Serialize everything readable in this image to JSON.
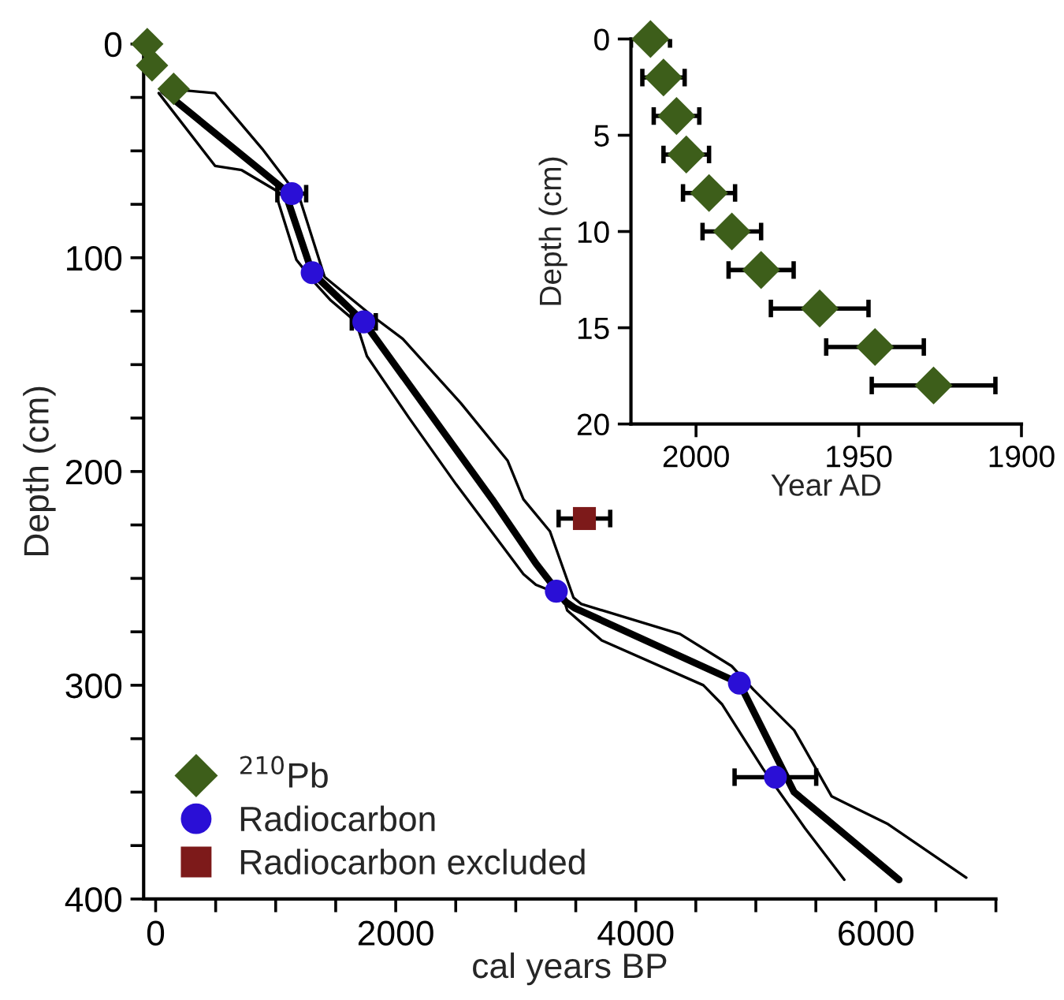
{
  "chart_data": [
    {
      "type": "line",
      "xlabel": "cal years BP",
      "ylabel": "Depth (cm)",
      "xlim": [
        -100,
        7000
      ],
      "ylim": [
        400,
        0
      ],
      "xticks": [
        0,
        {
          "value": 500,
          "label": null
        },
        {
          "value": 1000,
          "label": null
        },
        {
          "value": 1500,
          "label": null
        },
        2000,
        {
          "value": 2500,
          "label": null
        },
        {
          "value": 3000,
          "label": null
        },
        {
          "value": 3500,
          "label": null
        },
        4000,
        {
          "value": 4500,
          "label": null
        },
        {
          "value": 5000,
          "label": null
        },
        {
          "value": 5500,
          "label": null
        },
        6000,
        {
          "value": 6500,
          "label": null
        },
        {
          "value": 7000,
          "label": null
        }
      ],
      "yticks": [
        0,
        {
          "value": 25,
          "label": null
        },
        {
          "value": 50,
          "label": null
        },
        {
          "value": 75,
          "label": null
        },
        100,
        {
          "value": 125,
          "label": null
        },
        {
          "value": 150,
          "label": null
        },
        {
          "value": 175,
          "label": null
        },
        200,
        {
          "value": 225,
          "label": null
        },
        {
          "value": 250,
          "label": null
        },
        {
          "value": 275,
          "label": null
        },
        300,
        {
          "value": 325,
          "label": null
        },
        {
          "value": 350,
          "label": null
        },
        {
          "value": 375,
          "label": null
        },
        400
      ],
      "grid": false,
      "legend": "bottom left",
      "series": [
        {
          "color": "#000000",
          "x": [
            26,
            495,
            717,
            1017,
            1017,
            1173,
            1330,
            1460,
            1669,
            1760,
            2112,
            2503,
            3064,
            3168,
            3390,
            3429,
            3716,
            4563,
            4720,
            5059,
            5411,
            5737
          ],
          "values": [
            23,
            57,
            59,
            69,
            73,
            101,
            112,
            120,
            130,
            146,
            175,
            206,
            248,
            253,
            258,
            265,
            279,
            300,
            309,
            339,
            367,
            391
          ]
        },
        {
          "color": "#000000",
          "x": [
            65,
            1070,
            1304,
            1734,
            2803,
            3168,
            3416,
            3494,
            4863,
            5319,
            6193
          ],
          "values": [
            22,
            68,
            107,
            130,
            213,
            243,
            261,
            264,
            299,
            350,
            391
          ]
        },
        {
          "color": "#000000",
          "x": [
            104,
            495,
            887,
            1199,
            1408,
            1799,
            2060,
            2542,
            2933,
            3064,
            3285,
            3481,
            3546,
            4368,
            4798,
            4980,
            5319,
            5632,
            6102,
            6753
          ],
          "values": [
            21,
            23,
            49,
            72,
            109,
            127,
            138,
            168,
            195,
            213,
            228,
            259,
            262,
            276,
            291,
            302,
            321,
            352,
            365,
            390
          ]
        },
        {
          "type": "scatter",
          "name": "$^{210}$Pb",
          "marker": "diamond",
          "color": "#3d5e1a",
          "x": [
            -70,
            -30,
            150
          ],
          "values": [
            0,
            10,
            21
          ]
        },
        {
          "type": "scatter",
          "name": "Radiocarbon",
          "marker": "circle",
          "color": "#2a0fd6",
          "x": [
            1134,
            1304,
            1734,
            3338,
            4863,
            5163
          ],
          "values": [
            70,
            107,
            130,
            256,
            299,
            343
          ],
          "xerrors": [
            120,
            null,
            100,
            null,
            null,
            340
          ]
        },
        {
          "type": "scatter",
          "name": "Radiocarbon excluded",
          "marker": "square",
          "color": "#7d1a1a",
          "x": [
            3572
          ],
          "values": [
            222
          ],
          "xerrors": [
            215
          ]
        }
      ]
    },
    {
      "type": "scatter",
      "xlabel": "Year AD",
      "ylabel": "Depth (cm)",
      "xlim": [
        2020,
        1900
      ],
      "ylim": [
        20,
        0
      ],
      "xticks": [
        2000,
        1950,
        1900
      ],
      "yticks": [
        0,
        5,
        10,
        15,
        20
      ],
      "grid": false,
      "series": [
        {
          "marker": "diamond",
          "color": "#3d5e1a",
          "x": [
            2014,
            2010,
            2006,
            2003,
            1996,
            1989,
            1980,
            1962,
            1945,
            1927
          ],
          "values": [
            0,
            2,
            4,
            6,
            8,
            10,
            12,
            14,
            16,
            18
          ],
          "xerrors": [
            6,
            6.5,
            7,
            7,
            8,
            9,
            10,
            15,
            15,
            19
          ]
        }
      ]
    }
  ]
}
